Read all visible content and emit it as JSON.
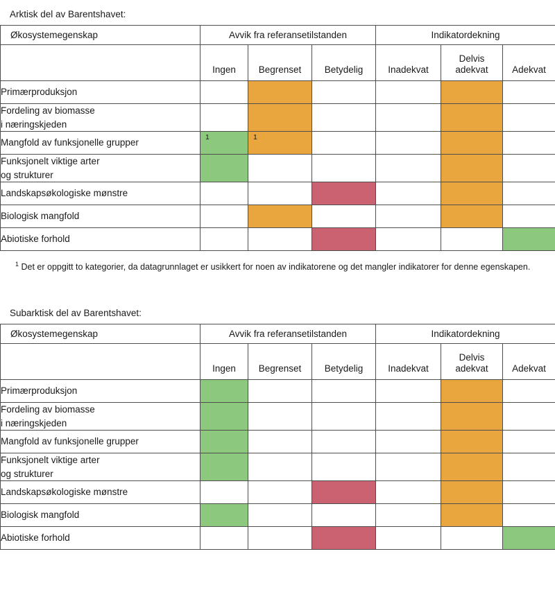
{
  "colors": {
    "border": "#4d4d4d",
    "orange": "#E9A63E",
    "green": "#8CC87D",
    "red": "#CB6272"
  },
  "column_ids": [
    "ingen",
    "begrenset",
    "betydelig",
    "inadekvat",
    "delvis-adekvat",
    "adekvat"
  ],
  "sections": [
    {
      "title": "Arktisk del av Barentshavet:",
      "header": {
        "property_label": "Økosystemegenskap",
        "group1": "Avvik fra referansetilstanden",
        "group2": "Indikatordekning",
        "columns": [
          "Ingen",
          "Begrenset",
          "Betydelig",
          "Inadekvat",
          "Delvis\nadekvat",
          "Adekvat"
        ]
      },
      "rows": [
        {
          "label": "Primærproduksjon",
          "cells": [
            "",
            "orange",
            "",
            "",
            "orange",
            ""
          ]
        },
        {
          "label": "Fordeling av biomasse\ni næringskjeden",
          "cells": [
            "",
            "orange",
            "",
            "",
            "orange",
            ""
          ]
        },
        {
          "label": "Mangfold av funksjonelle grupper",
          "cells": [
            "green",
            "orange",
            "",
            "",
            "orange",
            ""
          ],
          "notes": [
            "1",
            "1",
            "",
            "",
            "",
            ""
          ]
        },
        {
          "label": "Funksjonelt viktige arter\nog strukturer",
          "cells": [
            "green",
            "",
            "",
            "",
            "orange",
            ""
          ]
        },
        {
          "label": "Landskapsøkologiske mønstre",
          "cells": [
            "",
            "",
            "red",
            "",
            "orange",
            ""
          ]
        },
        {
          "label": "Biologisk mangfold",
          "cells": [
            "",
            "orange",
            "",
            "",
            "orange",
            ""
          ]
        },
        {
          "label": "Abiotiske forhold",
          "cells": [
            "",
            "",
            "red",
            "",
            "",
            "green"
          ]
        }
      ],
      "footnote": {
        "marker": "1",
        "text": "Det er oppgitt to kategorier, da datagrunnlaget er usikkert for noen av indikatorene og det mangler indikatorer for denne egenskapen."
      }
    },
    {
      "title": "Subarktisk del av Barentshavet:",
      "header": {
        "property_label": "Økosystemegenskap",
        "group1": "Avvik fra referansetilstanden",
        "group2": "Indikatordekning",
        "columns": [
          "Ingen",
          "Begrenset",
          "Betydelig",
          "Inadekvat",
          "Delvis\nadekvat",
          "Adekvat"
        ]
      },
      "rows": [
        {
          "label": "Primærproduksjon",
          "cells": [
            "green",
            "",
            "",
            "",
            "orange",
            ""
          ]
        },
        {
          "label": "Fordeling av biomasse\ni næringskjeden",
          "cells": [
            "green",
            "",
            "",
            "",
            "orange",
            ""
          ]
        },
        {
          "label": "Mangfold av funksjonelle grupper",
          "cells": [
            "green",
            "",
            "",
            "",
            "orange",
            ""
          ]
        },
        {
          "label": "Funksjonelt viktige arter\nog strukturer",
          "cells": [
            "green",
            "",
            "",
            "",
            "orange",
            ""
          ]
        },
        {
          "label": "Landskapsøkologiske mønstre",
          "cells": [
            "",
            "",
            "red",
            "",
            "orange",
            ""
          ]
        },
        {
          "label": "Biologisk mangfold",
          "cells": [
            "green",
            "",
            "",
            "",
            "orange",
            ""
          ]
        },
        {
          "label": "Abiotiske forhold",
          "cells": [
            "",
            "",
            "red",
            "",
            "",
            "green"
          ]
        }
      ]
    }
  ]
}
